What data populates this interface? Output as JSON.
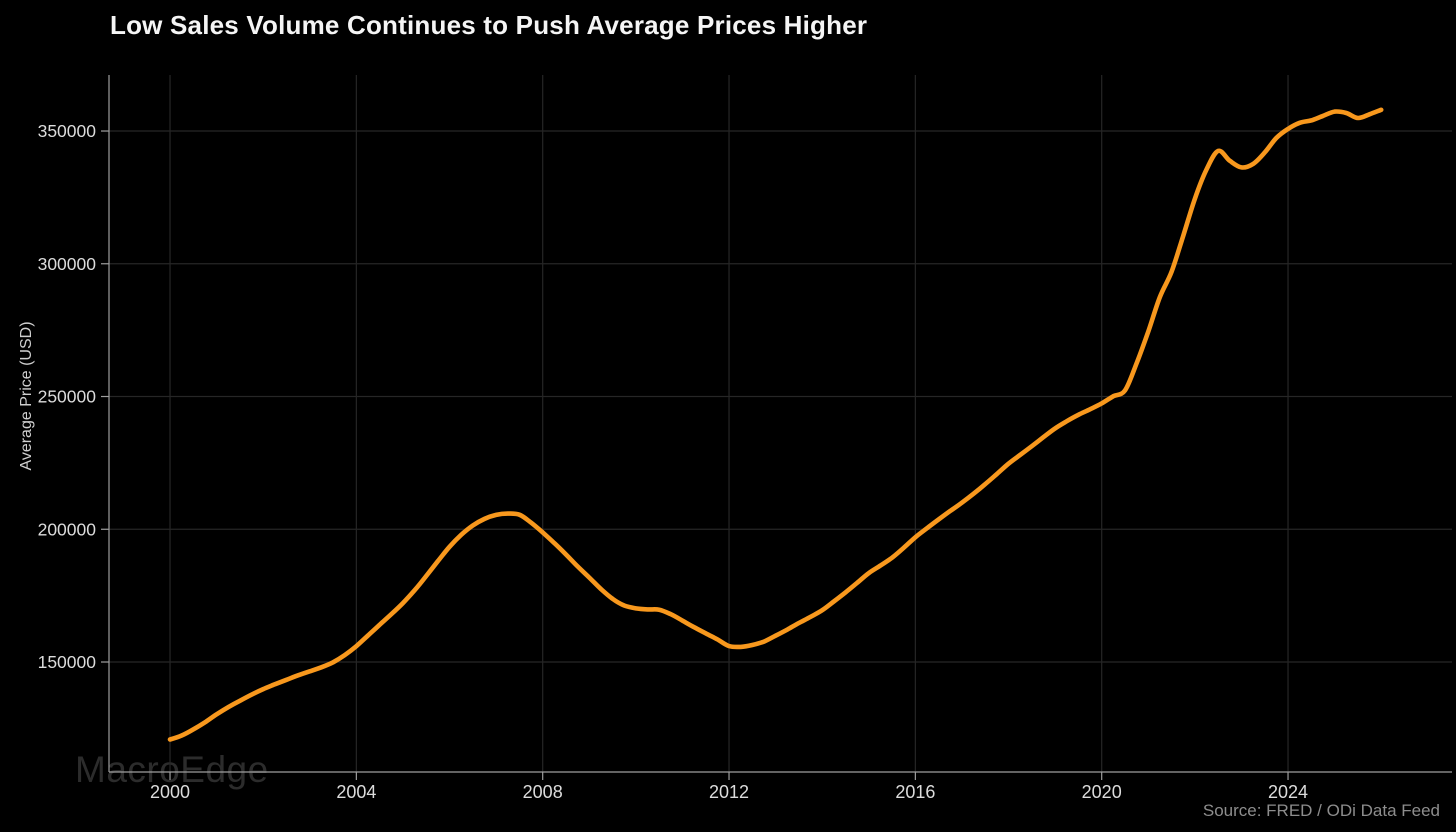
{
  "watermark": {
    "text": "MacroEdge"
  },
  "footer": {
    "source_label": "Source: FRED / ODi Data Feed"
  },
  "chart_data": {
    "type": "line",
    "title": "Low Sales Volume Continues to Push Average Prices Higher",
    "xlabel": "",
    "ylabel": "Average Price (USD)",
    "grid": true,
    "legend": "none",
    "line_color": "#f8981d",
    "colors": {
      "background": "#000000",
      "grid": "#262626",
      "axis": "#9e9e9e",
      "tick_text": "#dcdcdc",
      "title_text": "#f5f5f5",
      "muted_text": "#8d8d8d",
      "watermark_text": "#2c2c2c"
    },
    "xlim": [
      1998.69,
      2027.52
    ],
    "ylim": [
      108570,
      371100
    ],
    "x_ticks": {
      "values": [
        2000,
        2004,
        2008,
        2012,
        2016,
        2020,
        2024
      ],
      "labels": [
        "2000",
        "2004",
        "2008",
        "2012",
        "2016",
        "2020",
        "2024"
      ]
    },
    "y_ticks": {
      "values": [
        150000,
        200000,
        250000,
        300000,
        350000
      ],
      "labels": [
        "150000",
        "200000",
        "250000",
        "300000",
        "350000"
      ]
    },
    "x": [
      2000.0,
      2000.25,
      2000.5,
      2000.75,
      2001.0,
      2001.25,
      2001.5,
      2001.75,
      2002.0,
      2002.25,
      2002.5,
      2002.75,
      2003.0,
      2003.25,
      2003.5,
      2003.75,
      2004.0,
      2004.25,
      2004.5,
      2004.75,
      2005.0,
      2005.25,
      2005.5,
      2005.75,
      2006.0,
      2006.25,
      2006.5,
      2006.75,
      2007.0,
      2007.25,
      2007.5,
      2007.75,
      2008.0,
      2008.25,
      2008.5,
      2008.75,
      2009.0,
      2009.25,
      2009.5,
      2009.75,
      2010.0,
      2010.25,
      2010.5,
      2010.75,
      2011.0,
      2011.25,
      2011.5,
      2011.75,
      2012.0,
      2012.25,
      2012.5,
      2012.75,
      2013.0,
      2013.25,
      2013.5,
      2013.75,
      2014.0,
      2014.25,
      2014.5,
      2014.75,
      2015.0,
      2015.25,
      2015.5,
      2015.75,
      2016.0,
      2016.25,
      2016.5,
      2016.75,
      2017.0,
      2017.25,
      2017.5,
      2017.75,
      2018.0,
      2018.25,
      2018.5,
      2018.75,
      2019.0,
      2019.25,
      2019.5,
      2019.75,
      2020.0,
      2020.25,
      2020.5,
      2020.75,
      2021.0,
      2021.25,
      2021.5,
      2021.75,
      2022.0,
      2022.25,
      2022.5,
      2022.75,
      2023.0,
      2023.25,
      2023.5,
      2023.75,
      2024.0,
      2024.25,
      2024.5,
      2024.75,
      2025.0,
      2025.25,
      2025.5,
      2025.75,
      2026.0
    ],
    "values": [
      120800,
      122300,
      124600,
      127300,
      130300,
      133000,
      135400,
      137700,
      139800,
      141600,
      143300,
      145000,
      146500,
      148000,
      149900,
      152600,
      156000,
      160000,
      164000,
      168000,
      172200,
      177000,
      182400,
      188000,
      193400,
      197900,
      201400,
      203900,
      205400,
      205900,
      205500,
      202500,
      198800,
      194800,
      190500,
      186000,
      181800,
      177500,
      173800,
      171300,
      170200,
      169800,
      169700,
      168000,
      165600,
      163100,
      160800,
      158500,
      156000,
      155700,
      156400,
      157700,
      159900,
      162200,
      164700,
      167000,
      169500,
      172800,
      176200,
      179800,
      183500,
      186300,
      189300,
      193000,
      197000,
      200400,
      203700,
      206900,
      210000,
      213400,
      217000,
      220800,
      224700,
      228000,
      231300,
      234700,
      238000,
      240700,
      243100,
      245200,
      247400,
      250100,
      252300,
      262500,
      274500,
      287500,
      297000,
      310500,
      324500,
      335500,
      342500,
      338800,
      336300,
      337600,
      341900,
      347400,
      350800,
      353100,
      354000,
      355700,
      357300,
      356800,
      354900,
      356300,
      358000
    ]
  }
}
